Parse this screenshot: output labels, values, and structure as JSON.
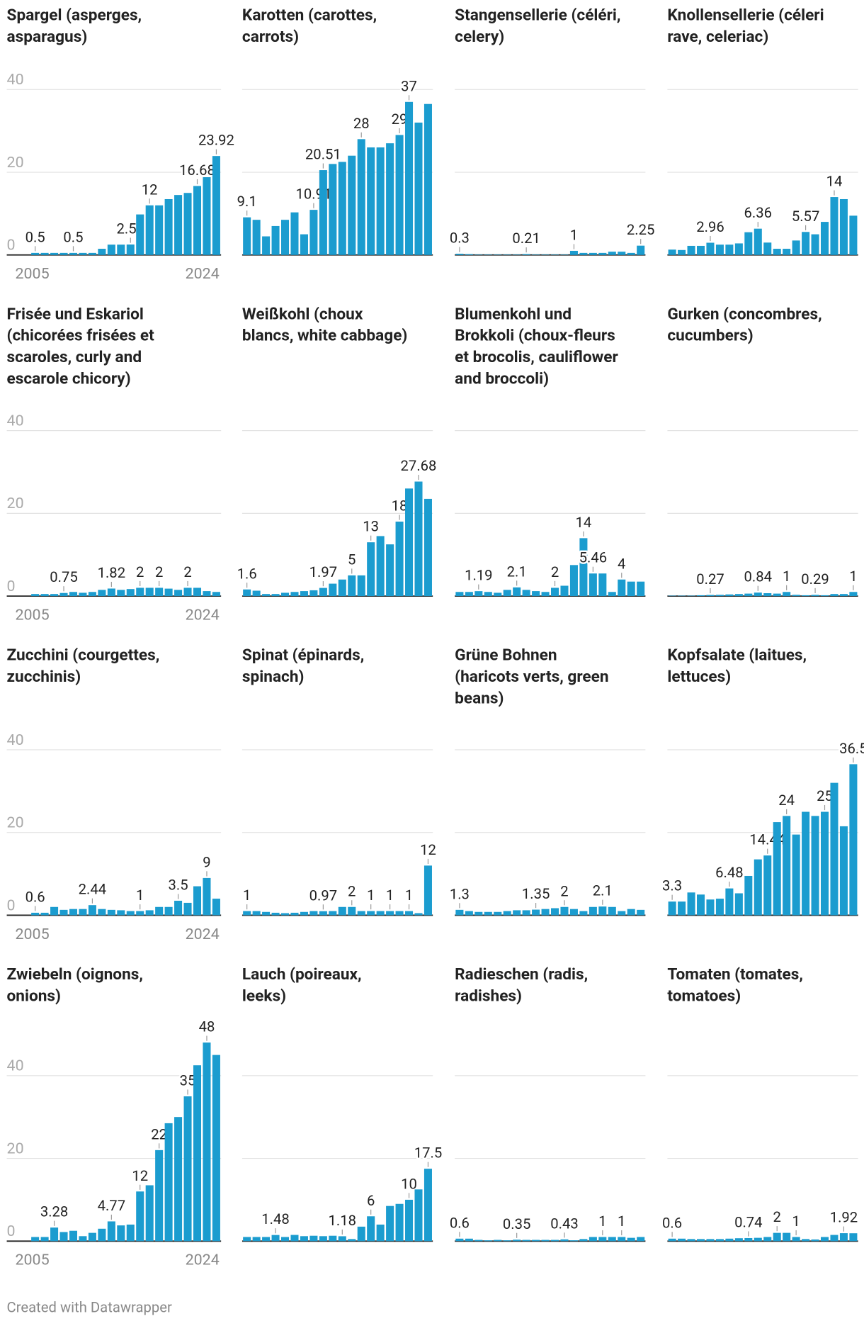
{
  "chart_data": [
    {
      "type": "bar",
      "title": [
        "Spargel (asperges,",
        "asparagus)"
      ],
      "categories": [
        "2005",
        null,
        null,
        null,
        null,
        null,
        null,
        null,
        null,
        null,
        null,
        null,
        null,
        null,
        null,
        null,
        null,
        null,
        null,
        "2024"
      ],
      "values": [
        0.5,
        0.5,
        0.5,
        0.5,
        0.5,
        0.5,
        0.5,
        1.5,
        2.5,
        2.5,
        2.53,
        9.8,
        12,
        12,
        13.5,
        14.5,
        15,
        16.68,
        18.8,
        23.92
      ],
      "value_labels": [
        "0.5",
        null,
        null,
        null,
        "0.5",
        null,
        null,
        null,
        null,
        null,
        "2.53",
        null,
        "12",
        null,
        null,
        null,
        null,
        "16.68",
        null,
        "23.92"
      ],
      "color": "#1b9ccf",
      "ylim": [
        0,
        40
      ],
      "yticks": [
        0,
        20,
        40
      ],
      "ytick_labels": true,
      "grid": true
    },
    {
      "type": "bar",
      "title": [
        "Karotten (carottes,",
        "carrots)"
      ],
      "values": [
        9.1,
        8.5,
        4.5,
        7,
        8.5,
        10.3,
        5,
        10.91,
        20.51,
        22,
        22.5,
        24,
        28,
        26,
        26,
        27,
        29,
        37,
        32,
        36.5
      ],
      "value_labels": [
        "9.1",
        null,
        null,
        null,
        null,
        null,
        null,
        "10.91",
        "20.51",
        null,
        null,
        null,
        "28",
        null,
        null,
        null,
        "29",
        "37",
        null,
        null
      ],
      "color": "#1b9ccf",
      "ylim": [
        0,
        40
      ],
      "yticks": [
        0,
        20,
        40
      ],
      "ytick_labels": false,
      "grid": true
    },
    {
      "type": "bar",
      "title": [
        "Stangensellerie (céléri,",
        "celery)"
      ],
      "values": [
        0.3,
        0.2,
        0.1,
        0.1,
        0.1,
        0.1,
        0.1,
        0.21,
        0.1,
        0.1,
        0.1,
        0.1,
        1,
        0.5,
        0.5,
        0.5,
        0.8,
        0.8,
        0.5,
        2.25
      ],
      "value_labels": [
        "0.3",
        null,
        null,
        null,
        null,
        null,
        null,
        "0.21",
        null,
        null,
        null,
        null,
        "1",
        null,
        null,
        null,
        null,
        null,
        null,
        "2.25"
      ],
      "color": "#1b9ccf",
      "ylim": [
        0,
        40
      ],
      "yticks": [
        0,
        20,
        40
      ],
      "ytick_labels": false,
      "grid": true
    },
    {
      "type": "bar",
      "title": [
        "Knollensellerie (céleri",
        "rave, celeriac)"
      ],
      "values": [
        1.3,
        1.2,
        2.2,
        2.2,
        2.96,
        2.5,
        2.5,
        2.8,
        5.5,
        6.36,
        3,
        1.5,
        1.5,
        3.5,
        5.57,
        5,
        8,
        14,
        13.5,
        9.5
      ],
      "value_labels": [
        null,
        null,
        null,
        null,
        "2.96",
        null,
        null,
        null,
        null,
        "6.36",
        null,
        null,
        null,
        null,
        "5.57",
        null,
        null,
        "14",
        null,
        null
      ],
      "color": "#1b9ccf",
      "ylim": [
        0,
        40
      ],
      "yticks": [
        0,
        20,
        40
      ],
      "ytick_labels": false,
      "grid": true
    },
    {
      "type": "bar",
      "title": [
        "Frisée und Eskariol",
        "(chicorées frisées et",
        "scaroles, curly and",
        "escarole chicory)"
      ],
      "categories": [
        "2005",
        null,
        null,
        null,
        null,
        null,
        null,
        null,
        null,
        null,
        null,
        null,
        null,
        null,
        null,
        null,
        null,
        null,
        null,
        "2024"
      ],
      "values": [
        0.5,
        0.5,
        0.5,
        0.75,
        1,
        0.8,
        1,
        1.5,
        1.82,
        1.5,
        1.7,
        2,
        2,
        2,
        1.8,
        1.5,
        2,
        2,
        1.2,
        1
      ],
      "value_labels": [
        null,
        null,
        null,
        "0.75",
        null,
        null,
        null,
        null,
        "1.82",
        null,
        null,
        "2",
        null,
        "2",
        null,
        null,
        "2",
        null,
        null,
        null
      ],
      "color": "#1b9ccf",
      "ylim": [
        0,
        40
      ],
      "yticks": [
        0,
        20,
        40
      ],
      "ytick_labels": true,
      "grid": true
    },
    {
      "type": "bar",
      "title": [
        "Weißkohl (choux",
        "blancs, white cabbage)"
      ],
      "values": [
        1.6,
        1.3,
        0.5,
        0.5,
        0.8,
        1,
        1.2,
        1.4,
        1.97,
        3,
        4,
        5,
        5,
        13,
        14.5,
        12.5,
        18,
        26,
        27.68,
        23.5
      ],
      "value_labels": [
        "1.6",
        null,
        null,
        null,
        null,
        null,
        null,
        null,
        "1.97",
        null,
        null,
        "5",
        null,
        "13",
        null,
        null,
        "18",
        null,
        "27.68",
        null
      ],
      "color": "#1b9ccf",
      "ylim": [
        0,
        40
      ],
      "yticks": [
        0,
        20,
        40
      ],
      "ytick_labels": false,
      "grid": true
    },
    {
      "type": "bar",
      "title": [
        "Blumenkohl und",
        "Brokkoli (choux-fleurs",
        "et brocolis, cauliflower",
        "and broccoli)"
      ],
      "values": [
        1,
        1,
        1.19,
        1,
        0.8,
        1.5,
        2.1,
        1.5,
        1.2,
        1,
        2,
        2.5,
        7.5,
        14,
        5.46,
        5.46,
        1,
        4,
        3.5,
        3.5
      ],
      "value_labels": [
        null,
        null,
        "1.19",
        null,
        null,
        null,
        "2.1",
        null,
        null,
        null,
        "2",
        null,
        null,
        "14",
        "5.46",
        null,
        null,
        "4",
        null,
        null
      ],
      "color": "#1b9ccf",
      "ylim": [
        0,
        40
      ],
      "yticks": [
        0,
        20,
        40
      ],
      "ytick_labels": false,
      "grid": true
    },
    {
      "type": "bar",
      "title": [
        "Gurken (concombres,",
        "cucumbers)"
      ],
      "values": [
        0.1,
        0.1,
        0.1,
        0.2,
        0.27,
        0.3,
        0.4,
        0.5,
        0.6,
        0.84,
        0.7,
        0.6,
        1,
        0.3,
        0.2,
        0.29,
        0.2,
        0.5,
        0.5,
        1
      ],
      "value_labels": [
        null,
        null,
        null,
        null,
        "0.27",
        null,
        null,
        null,
        null,
        "0.84",
        null,
        null,
        "1",
        null,
        null,
        "0.29",
        null,
        null,
        null,
        "1"
      ],
      "color": "#1b9ccf",
      "ylim": [
        0,
        40
      ],
      "yticks": [
        0,
        20,
        40
      ],
      "ytick_labels": false,
      "grid": true
    },
    {
      "type": "bar",
      "title": [
        "Zucchini (courgettes,",
        "zucchinis)"
      ],
      "categories": [
        "2005",
        null,
        null,
        null,
        null,
        null,
        null,
        null,
        null,
        null,
        null,
        null,
        null,
        null,
        null,
        null,
        null,
        null,
        null,
        "2024"
      ],
      "values": [
        0.6,
        0.6,
        2,
        1.3,
        1.5,
        1.5,
        2.44,
        1.5,
        1.3,
        1.2,
        1,
        1,
        1.2,
        2,
        2,
        3.5,
        3,
        7,
        9,
        4
      ],
      "value_labels": [
        "0.6",
        null,
        null,
        null,
        null,
        null,
        "2.44",
        null,
        null,
        null,
        null,
        "1",
        null,
        null,
        null,
        "3.5",
        null,
        null,
        "9",
        null
      ],
      "color": "#1b9ccf",
      "ylim": [
        0,
        40
      ],
      "yticks": [
        0,
        20,
        40
      ],
      "ytick_labels": true,
      "grid": true
    },
    {
      "type": "bar",
      "title": [
        "Spinat (épinards,",
        "spinach)"
      ],
      "values": [
        1,
        1,
        0.8,
        0.6,
        0.5,
        0.6,
        0.8,
        1,
        0.97,
        1,
        2,
        2,
        1,
        1,
        1,
        1,
        1,
        1,
        0.5,
        12
      ],
      "value_labels": [
        "1",
        null,
        null,
        null,
        null,
        null,
        null,
        null,
        "0.97",
        null,
        null,
        "2",
        null,
        "1",
        null,
        "1",
        null,
        "1",
        null,
        "12"
      ],
      "color": "#1b9ccf",
      "ylim": [
        0,
        40
      ],
      "yticks": [
        0,
        20,
        40
      ],
      "ytick_labels": false,
      "grid": true
    },
    {
      "type": "bar",
      "title": [
        "Grüne Bohnen",
        "(haricots verts, green",
        "beans)"
      ],
      "values": [
        1.3,
        1,
        0.8,
        0.8,
        0.8,
        1,
        1.2,
        1.2,
        1.35,
        1.5,
        1.7,
        2,
        1.5,
        1,
        2,
        2.1,
        2,
        1,
        1.5,
        1.3
      ],
      "value_labels": [
        "1.3",
        null,
        null,
        null,
        null,
        null,
        null,
        null,
        "1.35",
        null,
        null,
        "2",
        null,
        null,
        null,
        "2.1",
        null,
        null,
        null,
        null
      ],
      "color": "#1b9ccf",
      "ylim": [
        0,
        40
      ],
      "yticks": [
        0,
        20,
        40
      ],
      "ytick_labels": false,
      "grid": true
    },
    {
      "type": "bar",
      "title": [
        "Kopfsalate (laitues,",
        "lettuces)"
      ],
      "values": [
        3.3,
        3.3,
        5.5,
        5,
        3.8,
        4,
        6.48,
        5.3,
        9.5,
        13.5,
        14.44,
        22.5,
        24,
        19.5,
        25,
        24,
        25,
        32,
        21.5,
        36.5
      ],
      "value_labels": [
        "3.3",
        null,
        null,
        null,
        null,
        null,
        "6.48",
        null,
        null,
        null,
        "14.44",
        null,
        "24",
        null,
        null,
        null,
        "25",
        null,
        null,
        "36.5"
      ],
      "color": "#1b9ccf",
      "ylim": [
        0,
        40
      ],
      "yticks": [
        0,
        20,
        40
      ],
      "ytick_labels": false,
      "grid": true
    },
    {
      "type": "bar",
      "title": [
        "Zwiebeln (oignons,",
        "onions)"
      ],
      "categories": [
        "2005",
        null,
        null,
        null,
        null,
        null,
        null,
        null,
        null,
        null,
        null,
        null,
        null,
        null,
        null,
        null,
        null,
        null,
        null,
        "2024"
      ],
      "values": [
        1,
        1,
        3.28,
        2.2,
        2.5,
        1.2,
        2,
        3,
        4.77,
        3.8,
        4,
        12,
        13.5,
        22,
        28.5,
        30,
        35,
        42.5,
        48,
        45
      ],
      "value_labels": [
        null,
        null,
        "3.28",
        null,
        null,
        null,
        null,
        null,
        "4.77",
        null,
        null,
        "12",
        null,
        "22",
        null,
        null,
        "35",
        null,
        "48",
        null
      ],
      "color": "#1b9ccf",
      "ylim": [
        0,
        40
      ],
      "yticks": [
        0,
        20,
        40
      ],
      "ytick_labels": true,
      "grid": true
    },
    {
      "type": "bar",
      "title": [
        "Lauch (poireaux,",
        "leeks)"
      ],
      "values": [
        1,
        1,
        1,
        1.48,
        1,
        1.5,
        1.2,
        1.3,
        1.2,
        1.3,
        1.18,
        0.5,
        3.5,
        6,
        4,
        8.5,
        9,
        10,
        12.5,
        17.5
      ],
      "value_labels": [
        null,
        null,
        null,
        "1.48",
        null,
        null,
        null,
        null,
        null,
        null,
        "1.18",
        null,
        null,
        "6",
        null,
        null,
        null,
        "10",
        null,
        "17.5"
      ],
      "color": "#1b9ccf",
      "ylim": [
        0,
        40
      ],
      "yticks": [
        0,
        20,
        40
      ],
      "ytick_labels": false,
      "grid": true
    },
    {
      "type": "bar",
      "title": [
        "Radieschen (radis,",
        "radishes)"
      ],
      "values": [
        0.6,
        0.6,
        0.3,
        0.2,
        0.3,
        0.2,
        0.35,
        0.3,
        0.3,
        0.3,
        0.3,
        0.43,
        0.2,
        0.5,
        1,
        1,
        1,
        1,
        0.8,
        1
      ],
      "value_labels": [
        "0.6",
        null,
        null,
        null,
        null,
        null,
        "0.35",
        null,
        null,
        null,
        null,
        "0.43",
        null,
        null,
        null,
        "1",
        null,
        "1",
        null,
        null
      ],
      "color": "#1b9ccf",
      "ylim": [
        0,
        40
      ],
      "yticks": [
        0,
        20,
        40
      ],
      "ytick_labels": false,
      "grid": true
    },
    {
      "type": "bar",
      "title": [
        "Tomaten (tomates,",
        "tomatoes)"
      ],
      "values": [
        0.6,
        0.6,
        0.5,
        0.5,
        0.5,
        0.5,
        0.6,
        0.7,
        0.74,
        0.8,
        1,
        2,
        2,
        1,
        0.5,
        0.4,
        1,
        1.5,
        1.92,
        1.9
      ],
      "value_labels": [
        "0.6",
        null,
        null,
        null,
        null,
        null,
        null,
        null,
        "0.74",
        null,
        null,
        "2",
        null,
        "1",
        null,
        null,
        null,
        null,
        "1.92",
        null
      ],
      "color": "#1b9ccf",
      "ylim": [
        0,
        40
      ],
      "yticks": [
        0,
        20,
        40
      ],
      "ytick_labels": false,
      "grid": true
    }
  ],
  "footer": "Created with Datawrapper"
}
